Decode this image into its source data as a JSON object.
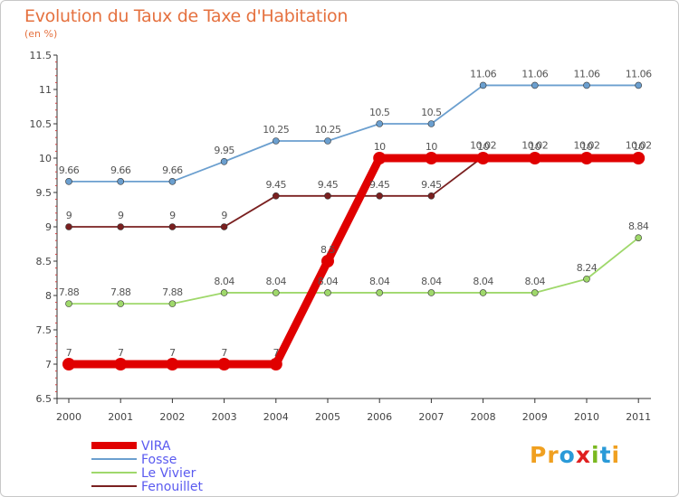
{
  "chart_data": {
    "type": "line",
    "title": "Evolution du Taux de Taxe d'Habitation",
    "subtitle": "(en %)",
    "x": [
      "2000",
      "2001",
      "2002",
      "2003",
      "2004",
      "2005",
      "2006",
      "2007",
      "2008",
      "2009",
      "2010",
      "2011"
    ],
    "ylim": [
      6.5,
      11.5
    ],
    "y_ticks": [
      "6.5",
      "7",
      "7.5",
      "8",
      "8.5",
      "9",
      "9.5",
      "10",
      "10.5",
      "11",
      "11.5"
    ],
    "grid": false,
    "legend_position": "bottom-left",
    "series": [
      {
        "name": "VIRA",
        "color": "#e00000",
        "values": [
          7,
          7,
          7,
          7,
          7,
          8.5,
          10,
          10,
          10,
          10,
          10,
          10
        ],
        "labels": [
          "7",
          "7",
          "7",
          "7",
          "7",
          "8.5",
          "10",
          "10",
          "10",
          "10",
          "10",
          "10"
        ]
      },
      {
        "name": "Fosse",
        "color": "#6b9fcf",
        "values": [
          9.66,
          9.66,
          9.66,
          9.95,
          10.25,
          10.25,
          10.5,
          10.5,
          11.06,
          11.06,
          11.06,
          11.06
        ],
        "labels": [
          "9.66",
          "9.66",
          "9.66",
          "9.95",
          "10.25",
          "10.25",
          "10.5",
          "10.5",
          "11.06",
          "11.06",
          "11.06",
          "11.06"
        ]
      },
      {
        "name": "Le Vivier",
        "color": "#9fd86b",
        "values": [
          7.88,
          7.88,
          7.88,
          8.04,
          8.04,
          8.04,
          8.04,
          8.04,
          8.04,
          8.04,
          8.24,
          8.84
        ],
        "labels": [
          "7.88",
          "7.88",
          "7.88",
          "8.04",
          "8.04",
          "8.04",
          "8.04",
          "8.04",
          "8.04",
          "8.04",
          "8.24",
          "8.84"
        ]
      },
      {
        "name": "Fenouillet",
        "color": "#7a2020",
        "values": [
          9,
          9,
          9,
          9,
          9.45,
          9.45,
          9.45,
          9.45,
          10.02,
          10.02,
          10.02,
          10.02
        ],
        "labels": [
          "9",
          "9",
          "9",
          "9",
          "9.45",
          "9.45",
          "9.45",
          "9.45",
          "10.02",
          "10.02",
          "10.02",
          "10.02"
        ]
      }
    ]
  },
  "logo": {
    "text": "Proxiti",
    "letters": [
      "P",
      "r",
      "o",
      "x",
      "i",
      "t",
      "i"
    ],
    "colors": [
      "#f0a020",
      "#f0a020",
      "#2a9ad8",
      "#e02020",
      "#7ab820",
      "#2a9ad8",
      "#f0a020"
    ]
  }
}
